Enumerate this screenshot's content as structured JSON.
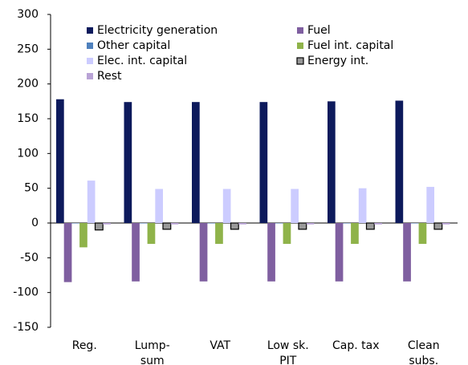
{
  "chart_data": {
    "type": "bar",
    "categories": [
      [
        "Reg."
      ],
      [
        "Lump-",
        "sum"
      ],
      [
        "VAT"
      ],
      [
        "Low sk.",
        "PIT"
      ],
      [
        "Cap. tax"
      ],
      [
        "Clean",
        "subs."
      ]
    ],
    "series": [
      {
        "name": "Electricity generation",
        "color": "#0d1a5c",
        "values": [
          178,
          174,
          174,
          174,
          175,
          176
        ]
      },
      {
        "name": "Fuel",
        "color": "#7f5fa0",
        "values": [
          -85,
          -84,
          -84,
          -84,
          -84,
          -84
        ]
      },
      {
        "name": "Other capital",
        "color": "#4f81bd",
        "values": [
          0,
          0,
          0,
          0,
          0,
          0
        ]
      },
      {
        "name": "Fuel int. capital",
        "color": "#8fb34a",
        "values": [
          -35,
          -30,
          -30,
          -30,
          -30,
          -30
        ]
      },
      {
        "name": "Elec. int. capital",
        "color": "#ccccff",
        "values": [
          61,
          49,
          49,
          49,
          50,
          52
        ]
      },
      {
        "name": "Energy int.",
        "color": "#999999",
        "values": [
          -10,
          -9,
          -9,
          -9,
          -9,
          -9
        ]
      },
      {
        "name": "Rest",
        "color": "#b9a3d6",
        "values": [
          -2,
          -2,
          -2,
          -2,
          -2,
          -2
        ]
      }
    ],
    "ylim": [
      -150,
      300
    ],
    "yticks": [
      -150,
      -100,
      -50,
      0,
      50,
      100,
      150,
      200,
      250,
      300
    ],
    "grid": false,
    "legend": "top"
  }
}
